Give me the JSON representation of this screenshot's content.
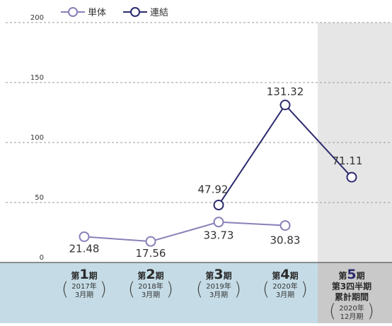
{
  "chart_data": {
    "type": "line",
    "ylim": [
      0,
      200
    ],
    "yticks": [
      "0",
      "50",
      "100",
      "150",
      "200"
    ],
    "grid": true,
    "legend_position": "top-left",
    "categories": [
      {
        "prefix": "第",
        "num": "1",
        "suffix": "期",
        "year": "2017年",
        "month": "3月期"
      },
      {
        "prefix": "第",
        "num": "2",
        "suffix": "期",
        "year": "2018年",
        "month": "3月期"
      },
      {
        "prefix": "第",
        "num": "3",
        "suffix": "期",
        "year": "2019年",
        "month": "3月期"
      },
      {
        "prefix": "第",
        "num": "4",
        "suffix": "期",
        "year": "2020年",
        "month": "3月期"
      },
      {
        "prefix": "第",
        "num": "5",
        "suffix": "期",
        "extra1": "第3四半期",
        "extra2": "累計期間",
        "year": "2020年",
        "month": "12月期"
      }
    ],
    "series": [
      {
        "name": "単体",
        "color": "#8a7fb8",
        "values": [
          21.48,
          17.56,
          33.73,
          30.83,
          null
        ],
        "labels": [
          "21.48",
          "17.56",
          "33.73",
          "30.83",
          ""
        ]
      },
      {
        "name": "連結",
        "color": "#2b2a6e",
        "values": [
          null,
          null,
          47.92,
          131.32,
          71.11
        ],
        "labels": [
          "",
          "",
          "47.92",
          "131.32",
          "71.11"
        ]
      }
    ],
    "highlight_band": "last-category"
  }
}
